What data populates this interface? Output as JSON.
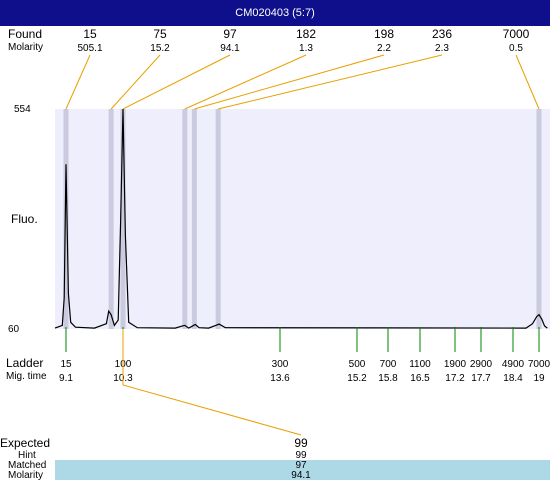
{
  "title": "CM020403 (5:7)",
  "labels": {
    "found": "Found",
    "molarity": "Molarity",
    "fluo": "Fluo.",
    "ladder": "Ladder",
    "mig_time": "Mig. time",
    "expected": "Expected",
    "hint": "Hint",
    "matched": "Matched",
    "molarity_bottom": "Molarity"
  },
  "chart_data": {
    "type": "line",
    "title": "CM020403 (5:7)",
    "xlabel": "",
    "ylabel": "Fluo.",
    "ylim": [
      60,
      554
    ],
    "y_tick_labels": [
      "554",
      "60"
    ],
    "found_peaks": [
      {
        "size": "15",
        "molarity": "505.1",
        "time": 9.1
      },
      {
        "size": "75",
        "molarity": "15.2",
        "time": 10.05
      },
      {
        "size": "97",
        "molarity": "94.1",
        "time": 10.3
      },
      {
        "size": "182",
        "molarity": "1.3",
        "time": 11.6
      },
      {
        "size": "198",
        "molarity": "2.2",
        "time": 11.8
      },
      {
        "size": "236",
        "molarity": "2.3",
        "time": 12.3
      },
      {
        "size": "7000",
        "molarity": "0.5",
        "time": 19.0
      }
    ],
    "ladder": [
      {
        "size": "15",
        "time": "9.1"
      },
      {
        "size": "100",
        "time": "10.3"
      },
      {
        "size": "300",
        "time": "13.6"
      },
      {
        "size": "500",
        "time": "15.2"
      },
      {
        "size": "700",
        "time": "15.8"
      },
      {
        "size": "1100",
        "time": "16.5"
      },
      {
        "size": "1900",
        "time": "17.2"
      },
      {
        "size": "2900",
        "time": "17.7"
      },
      {
        "size": "4900",
        "time": "18.4"
      },
      {
        "size": "7000",
        "time": "19"
      }
    ],
    "trace": [
      [
        8.8,
        62
      ],
      [
        9.0,
        68
      ],
      [
        9.05,
        130
      ],
      [
        9.1,
        430
      ],
      [
        9.15,
        140
      ],
      [
        9.2,
        75
      ],
      [
        9.3,
        64
      ],
      [
        9.7,
        62
      ],
      [
        9.95,
        72
      ],
      [
        10.0,
        100
      ],
      [
        10.05,
        92
      ],
      [
        10.12,
        68
      ],
      [
        10.2,
        80
      ],
      [
        10.25,
        300
      ],
      [
        10.3,
        554
      ],
      [
        10.35,
        270
      ],
      [
        10.42,
        75
      ],
      [
        10.6,
        63
      ],
      [
        11.4,
        62
      ],
      [
        11.55,
        67
      ],
      [
        11.6,
        68
      ],
      [
        11.68,
        62
      ],
      [
        11.75,
        66
      ],
      [
        11.82,
        70
      ],
      [
        11.9,
        63
      ],
      [
        12.1,
        62
      ],
      [
        12.25,
        68
      ],
      [
        12.32,
        71
      ],
      [
        12.45,
        63
      ],
      [
        18.7,
        62
      ],
      [
        18.85,
        72
      ],
      [
        18.95,
        88
      ],
      [
        19.0,
        92
      ],
      [
        19.1,
        82
      ],
      [
        19.2,
        67
      ],
      [
        19.3,
        62
      ]
    ],
    "expected": {
      "label": "99",
      "hint": "99",
      "matched": "97",
      "molarity": "94.1",
      "ladder_time": 10.3
    },
    "colors": {
      "plot_bg": "#eeeefc",
      "band": "#cbcbe0",
      "trace": "#000000",
      "found_leader": "#e8a000",
      "ladder_tick": "#008000",
      "title_bg": "#0f0f8c",
      "matched_bg": "#add8e6"
    }
  }
}
